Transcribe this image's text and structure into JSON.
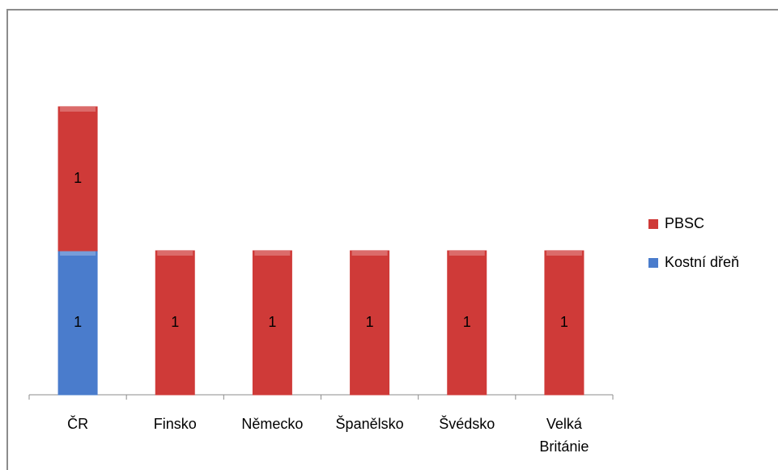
{
  "chart_data": {
    "type": "stacked-bar",
    "categories": [
      "ČR",
      "Finsko",
      "Německo",
      "Španělsko",
      "Švédsko",
      "Velká Británie"
    ],
    "series": [
      {
        "name": "Kostní dřeň",
        "color": "#4a7ccc",
        "values": [
          1,
          null,
          null,
          null,
          null,
          null
        ]
      },
      {
        "name": "PBSC",
        "color": "#cf3a38",
        "values": [
          1,
          1,
          1,
          1,
          1,
          1
        ]
      }
    ],
    "ylim": [
      0,
      2.5
    ],
    "legend": "right"
  }
}
